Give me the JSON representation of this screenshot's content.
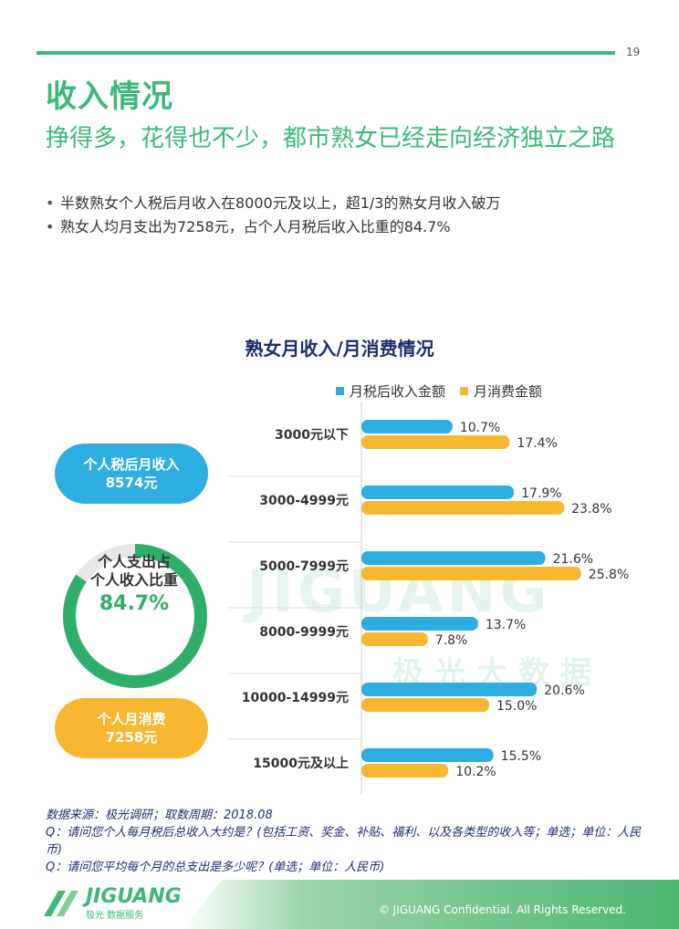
{
  "page_number": "19",
  "title": "收入情况",
  "subtitle": "挣得多，花得也不少，都市熟女已经走向经济独立之路",
  "bullets": [
    "半数熟女个人税后月收入在8000元及以上，超1/3的熟女月收入破万",
    "熟女人均月支出为7258元，占个人月税后收入比重的84.7%"
  ],
  "summary": {
    "income_label": "个人税后月收入",
    "income_value": "8574元",
    "ratio_label_1": "个人支出占",
    "ratio_label_2": "个人收入比重",
    "ratio_value": "84.7%",
    "ratio_fraction": 0.847,
    "spend_label": "个人月消费",
    "spend_value": "7258元"
  },
  "chart_data": {
    "type": "bar",
    "orientation": "horizontal",
    "title": "熟女月收入/月消费情况",
    "categories": [
      "3000元以下",
      "3000-4999元",
      "5000-7999元",
      "8000-9999元",
      "10000-14999元",
      "15000元及以上"
    ],
    "series": [
      {
        "name": "月税后收入金额",
        "color": "#2eaee0",
        "values": [
          10.7,
          17.9,
          21.6,
          13.7,
          20.6,
          15.5
        ]
      },
      {
        "name": "月消费金额",
        "color": "#f7b731",
        "values": [
          17.4,
          23.8,
          25.8,
          7.8,
          15.0,
          10.2
        ]
      }
    ],
    "value_suffix": "%",
    "xlim": [
      0,
      30
    ],
    "legend_position": "top"
  },
  "watermark": {
    "brand": "JIGUANG",
    "cn": "极光大数据"
  },
  "source": [
    "数据来源：极光调研；取数周期：2018.08",
    "Q：请问您个人每月税后总收入大约是？(包括工资、奖金、补贴、福利、以及各类型的收入等；单选；单位：人民币)",
    "Q：请问您平均每个月的总支出是多少呢？(单选；单位：人民币)"
  ],
  "footer": {
    "logo_brand": "JIGUANG",
    "logo_tag": "极光 数据服务",
    "copyright": "© JIGUANG Confidential. All Rights Reserved."
  }
}
